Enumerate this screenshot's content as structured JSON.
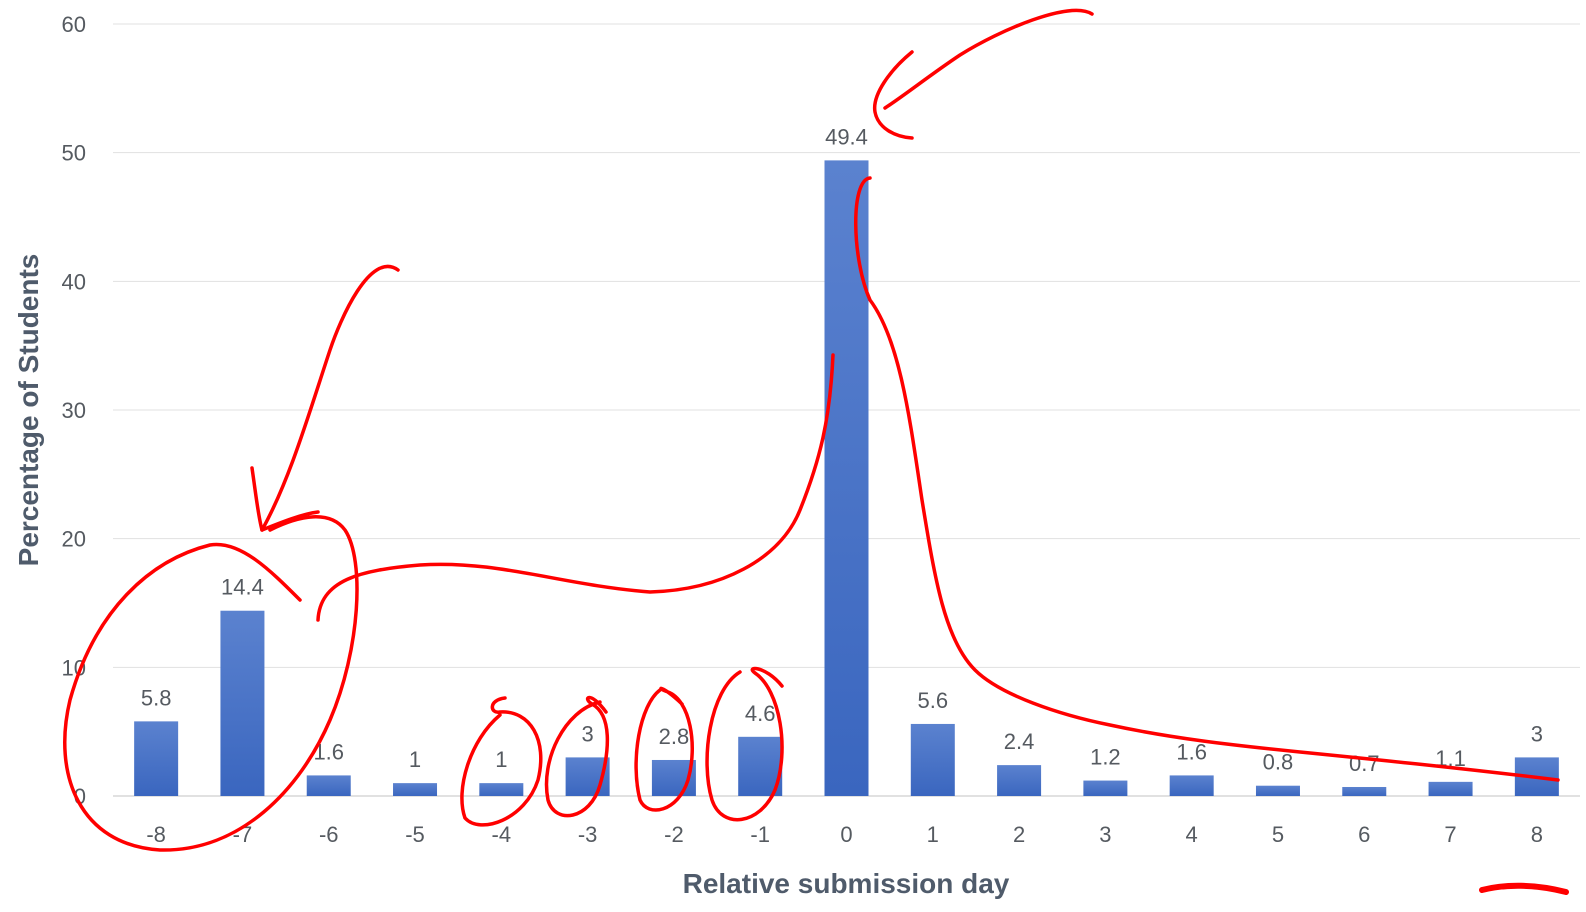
{
  "chart_data": {
    "type": "bar",
    "categories": [
      "-8",
      "-7",
      "-6",
      "-5",
      "-4",
      "-3",
      "-2",
      "-1",
      "0",
      "1",
      "2",
      "3",
      "4",
      "5",
      "6",
      "7",
      "8"
    ],
    "values": [
      5.8,
      14.4,
      1.6,
      1,
      1,
      3,
      2.8,
      4.6,
      49.4,
      5.6,
      2.4,
      1.2,
      1.6,
      0.8,
      0.7,
      1.1,
      3
    ],
    "data_labels": [
      "5.8",
      "14.4",
      "1.6",
      "1",
      "1",
      "3",
      "2.8",
      "4.6",
      "49.4",
      "5.6",
      "2.4",
      "1.2",
      "1.6",
      "0.8",
      "0.7",
      "1.1",
      "3"
    ],
    "xlabel": "Relative submission day",
    "ylabel": "Percentage of Students",
    "ylim": [
      0,
      60
    ],
    "yticks": [
      "0",
      "10",
      "20",
      "30",
      "40",
      "50",
      "60"
    ],
    "grid": true,
    "bar_color": "#4472c4",
    "annotation_color": "#ff0000"
  }
}
